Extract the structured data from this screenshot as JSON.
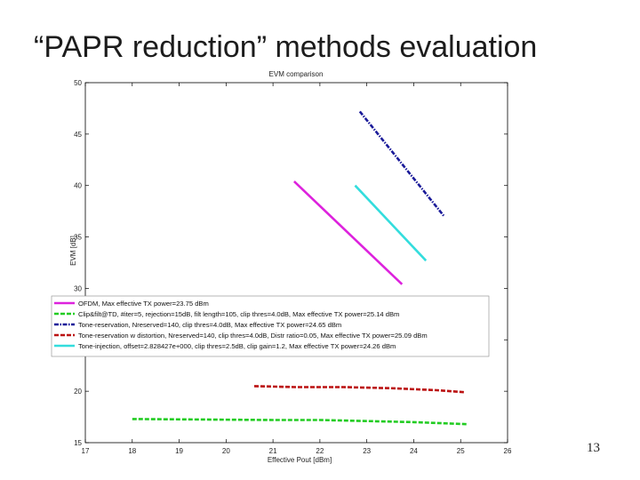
{
  "slide": {
    "title": "“PAPR reduction” methods evaluation",
    "page_number": "13"
  },
  "chart_data": {
    "type": "line",
    "title": "EVM comparison",
    "xlabel": "Effective Pout [dBm]",
    "ylabel": "EVM [dB]",
    "xlim": [
      17,
      26
    ],
    "ylim": [
      15,
      50
    ],
    "xticks": [
      "17",
      "18",
      "19",
      "20",
      "21",
      "22",
      "23",
      "24",
      "25",
      "26"
    ],
    "yticks": [
      "15",
      "20",
      "25",
      "30",
      "35",
      "40",
      "45",
      "50"
    ],
    "grid": false,
    "legend_position": "top-left",
    "series": [
      {
        "name": "OFDM, Max effective TX power=23.75 dBm",
        "color": "#dd22dd",
        "dash": "solid",
        "x": [
          21.45,
          23.75
        ],
        "y": [
          40.4,
          30.4
        ]
      },
      {
        "name": "Clip&filt@TD, #iter=5, rejection=15dB, filt length=105, clip thres=4.0dB, Max effective TX power=25.14 dBm",
        "color": "#22cc22",
        "dash": "dashed",
        "x": [
          18.0,
          21.0,
          22.0,
          23.0,
          24.0,
          25.14
        ],
        "y": [
          17.3,
          17.2,
          17.2,
          17.1,
          17.0,
          16.8
        ]
      },
      {
        "name": "Tone-reservation, Nreserved=140, clip thres=4.0dB, Max effective TX power=24.65 dBm",
        "color": "#1a1a99",
        "dash": "dashdot",
        "x": [
          22.85,
          24.65
        ],
        "y": [
          47.2,
          37.0
        ]
      },
      {
        "name": "Tone-reservation w distortion, Nreserved=140, clip thres=4.0dB, Distr ratio=0.05, Max effective TX power=25.09 dBm",
        "color": "#bb1111",
        "dash": "dashed",
        "x": [
          20.6,
          21.5,
          22.5,
          23.5,
          24.5,
          25.09
        ],
        "y": [
          20.5,
          20.4,
          20.4,
          20.3,
          20.1,
          19.9
        ]
      },
      {
        "name": "Tone-injection, offset=2.828427e+000, clip thres=2.5dB, clip gain=1.2, Max effective TX power=24.26 dBm",
        "color": "#33dddd",
        "dash": "solid",
        "x": [
          22.75,
          24.26
        ],
        "y": [
          40.0,
          32.7
        ]
      }
    ]
  }
}
